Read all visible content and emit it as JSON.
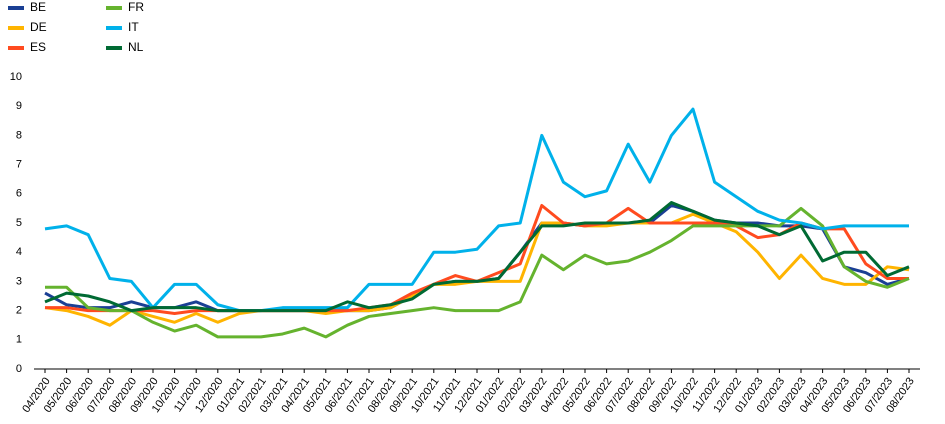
{
  "chart_data": {
    "type": "line",
    "categories": [
      "04/2020",
      "05/2020",
      "06/2020",
      "07/2020",
      "08/2020",
      "09/2020",
      "10/2020",
      "11/2020",
      "12/2020",
      "01/2021",
      "02/2021",
      "03/2021",
      "04/2021",
      "05/2021",
      "06/2021",
      "07/2021",
      "08/2021",
      "09/2021",
      "10/2021",
      "11/2021",
      "12/2021",
      "01/2022",
      "02/2022",
      "03/2022",
      "04/2022",
      "05/2022",
      "06/2022",
      "07/2022",
      "08/2022",
      "09/2022",
      "10/2022",
      "11/2022",
      "12/2022",
      "01/2023",
      "02/2023",
      "03/2023",
      "04/2023",
      "05/2023",
      "06/2023",
      "07/2023",
      "08/2023"
    ],
    "series": [
      {
        "name": "BE",
        "color": "#1a3f94",
        "values": [
          2.6,
          2.2,
          2.1,
          2.1,
          2.3,
          2.1,
          2.1,
          2.3,
          2.0,
          2.0,
          2.0,
          2.0,
          2.0,
          2.0,
          2.0,
          2.0,
          2.1,
          2.5,
          2.9,
          3.0,
          3.0,
          3.1,
          4.0,
          5.0,
          5.0,
          4.9,
          5.0,
          5.0,
          5.0,
          5.6,
          5.4,
          5.1,
          5.0,
          5.0,
          4.9,
          4.9,
          4.8,
          3.5,
          3.3,
          2.9,
          3.1
        ]
      },
      {
        "name": "DE",
        "color": "#ffb400",
        "values": [
          2.1,
          2.0,
          1.8,
          1.5,
          2.0,
          1.8,
          1.6,
          1.9,
          1.6,
          1.9,
          2.0,
          2.0,
          2.0,
          1.9,
          2.0,
          2.0,
          2.1,
          2.5,
          2.9,
          2.9,
          3.0,
          3.0,
          3.0,
          5.0,
          5.0,
          4.9,
          4.9,
          5.0,
          5.0,
          5.0,
          5.3,
          5.0,
          4.7,
          4.0,
          3.1,
          3.9,
          3.1,
          2.9,
          2.9,
          3.5,
          3.4
        ]
      },
      {
        "name": "ES",
        "color": "#ff4b1f",
        "values": [
          2.1,
          2.1,
          2.0,
          2.0,
          2.0,
          2.0,
          1.9,
          2.0,
          2.0,
          2.0,
          2.0,
          2.0,
          2.0,
          2.0,
          2.0,
          2.1,
          2.2,
          2.6,
          2.9,
          3.2,
          3.0,
          3.3,
          3.6,
          5.6,
          5.0,
          4.9,
          5.0,
          5.5,
          5.0,
          5.0,
          5.0,
          5.0,
          4.9,
          4.5,
          4.6,
          5.0,
          4.8,
          4.8,
          3.6,
          3.1,
          3.1
        ]
      },
      {
        "name": "FR",
        "color": "#65b32e",
        "values": [
          2.8,
          2.8,
          2.1,
          2.0,
          2.0,
          1.6,
          1.3,
          1.5,
          1.1,
          1.1,
          1.1,
          1.2,
          1.4,
          1.1,
          1.5,
          1.8,
          1.9,
          2.0,
          2.1,
          2.0,
          2.0,
          2.0,
          2.3,
          3.9,
          3.4,
          3.9,
          3.6,
          3.7,
          4.0,
          4.4,
          4.9,
          4.9,
          4.9,
          4.9,
          4.9,
          5.5,
          4.9,
          3.5,
          3.0,
          2.8,
          3.1
        ]
      },
      {
        "name": "IT",
        "color": "#00b1ea",
        "values": [
          4.8,
          4.9,
          4.6,
          3.1,
          3.0,
          2.1,
          2.9,
          2.9,
          2.2,
          2.0,
          2.0,
          2.1,
          2.1,
          2.1,
          2.1,
          2.9,
          2.9,
          2.9,
          4.0,
          4.0,
          4.1,
          4.9,
          5.0,
          8.0,
          6.4,
          5.9,
          6.1,
          7.7,
          6.4,
          8.0,
          8.9,
          6.4,
          5.9,
          5.4,
          5.1,
          5.0,
          4.8,
          4.9,
          4.9,
          4.9,
          4.9
        ]
      },
      {
        "name": "NL",
        "color": "#006a33",
        "values": [
          2.3,
          2.6,
          2.5,
          2.3,
          2.0,
          2.1,
          2.1,
          2.1,
          2.0,
          2.0,
          2.0,
          2.0,
          2.0,
          2.0,
          2.3,
          2.1,
          2.2,
          2.4,
          2.9,
          3.0,
          3.0,
          3.1,
          4.0,
          4.9,
          4.9,
          5.0,
          5.0,
          5.0,
          5.1,
          5.7,
          5.4,
          5.1,
          5.0,
          4.9,
          4.6,
          4.9,
          3.7,
          4.0,
          4.0,
          3.2,
          3.5
        ]
      }
    ],
    "ylim": [
      0,
      10
    ],
    "yticks": [
      0,
      1,
      2,
      3,
      4,
      5,
      6,
      7,
      8,
      9,
      10
    ],
    "grid": false
  }
}
